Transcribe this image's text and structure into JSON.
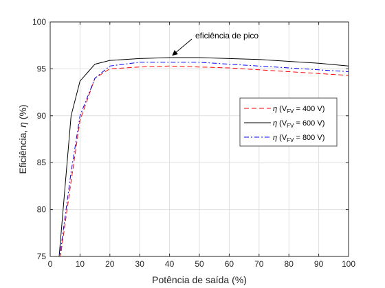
{
  "chart_data": {
    "type": "line",
    "title": "",
    "xlabel": "Potência de saída (%)",
    "ylabel_parts": [
      "Eficiência, ",
      "η",
      " (%)"
    ],
    "xlim": [
      0,
      100
    ],
    "ylim": [
      75,
      100
    ],
    "xticks": [
      0,
      10,
      20,
      30,
      40,
      50,
      60,
      70,
      80,
      90,
      100
    ],
    "yticks": [
      75,
      80,
      85,
      90,
      95,
      100
    ],
    "grid": true,
    "legend_position": "right",
    "annotation": {
      "text": "eficiência de pico",
      "points_to": {
        "x": 41,
        "y": 96.3
      }
    },
    "series": [
      {
        "name": "η (V_FV = 400 V)",
        "legend": {
          "eta": "η",
          "pre": " (V",
          "sub": "FV",
          "post": " = 400 V)"
        },
        "color": "#ff0000",
        "dash": "7,4",
        "x": [
          3,
          7,
          10,
          15,
          20,
          30,
          40,
          50,
          60,
          70,
          80,
          90,
          100
        ],
        "y": [
          74,
          83,
          89.5,
          94,
          95,
          95.2,
          95.3,
          95.2,
          95.1,
          94.9,
          94.7,
          94.5,
          94.3
        ]
      },
      {
        "name": "η (V_FV = 600 V)",
        "legend": {
          "eta": "η",
          "pre": " (V",
          "sub": "FV",
          "post": " = 600 V)"
        },
        "color": "#000000",
        "dash": "",
        "x": [
          3,
          7,
          10,
          15,
          20,
          30,
          40,
          50,
          60,
          70,
          80,
          90,
          100
        ],
        "y": [
          75,
          90,
          93.7,
          95.5,
          95.9,
          96.1,
          96.2,
          96.2,
          96.1,
          96,
          95.8,
          95.6,
          95.3
        ]
      },
      {
        "name": "η (V_FV = 800 V)",
        "legend": {
          "eta": "η",
          "pre": " (V",
          "sub": "FV",
          "post": " = 800 V)"
        },
        "color": "#0000ff",
        "dash": "7,3,2,3",
        "x": [
          3,
          7,
          10,
          15,
          20,
          30,
          40,
          50,
          60,
          70,
          80,
          90,
          100
        ],
        "y": [
          74.5,
          84,
          90,
          94,
          95.3,
          95.7,
          95.7,
          95.7,
          95.5,
          95.3,
          95.1,
          94.9,
          94.7
        ]
      }
    ]
  }
}
